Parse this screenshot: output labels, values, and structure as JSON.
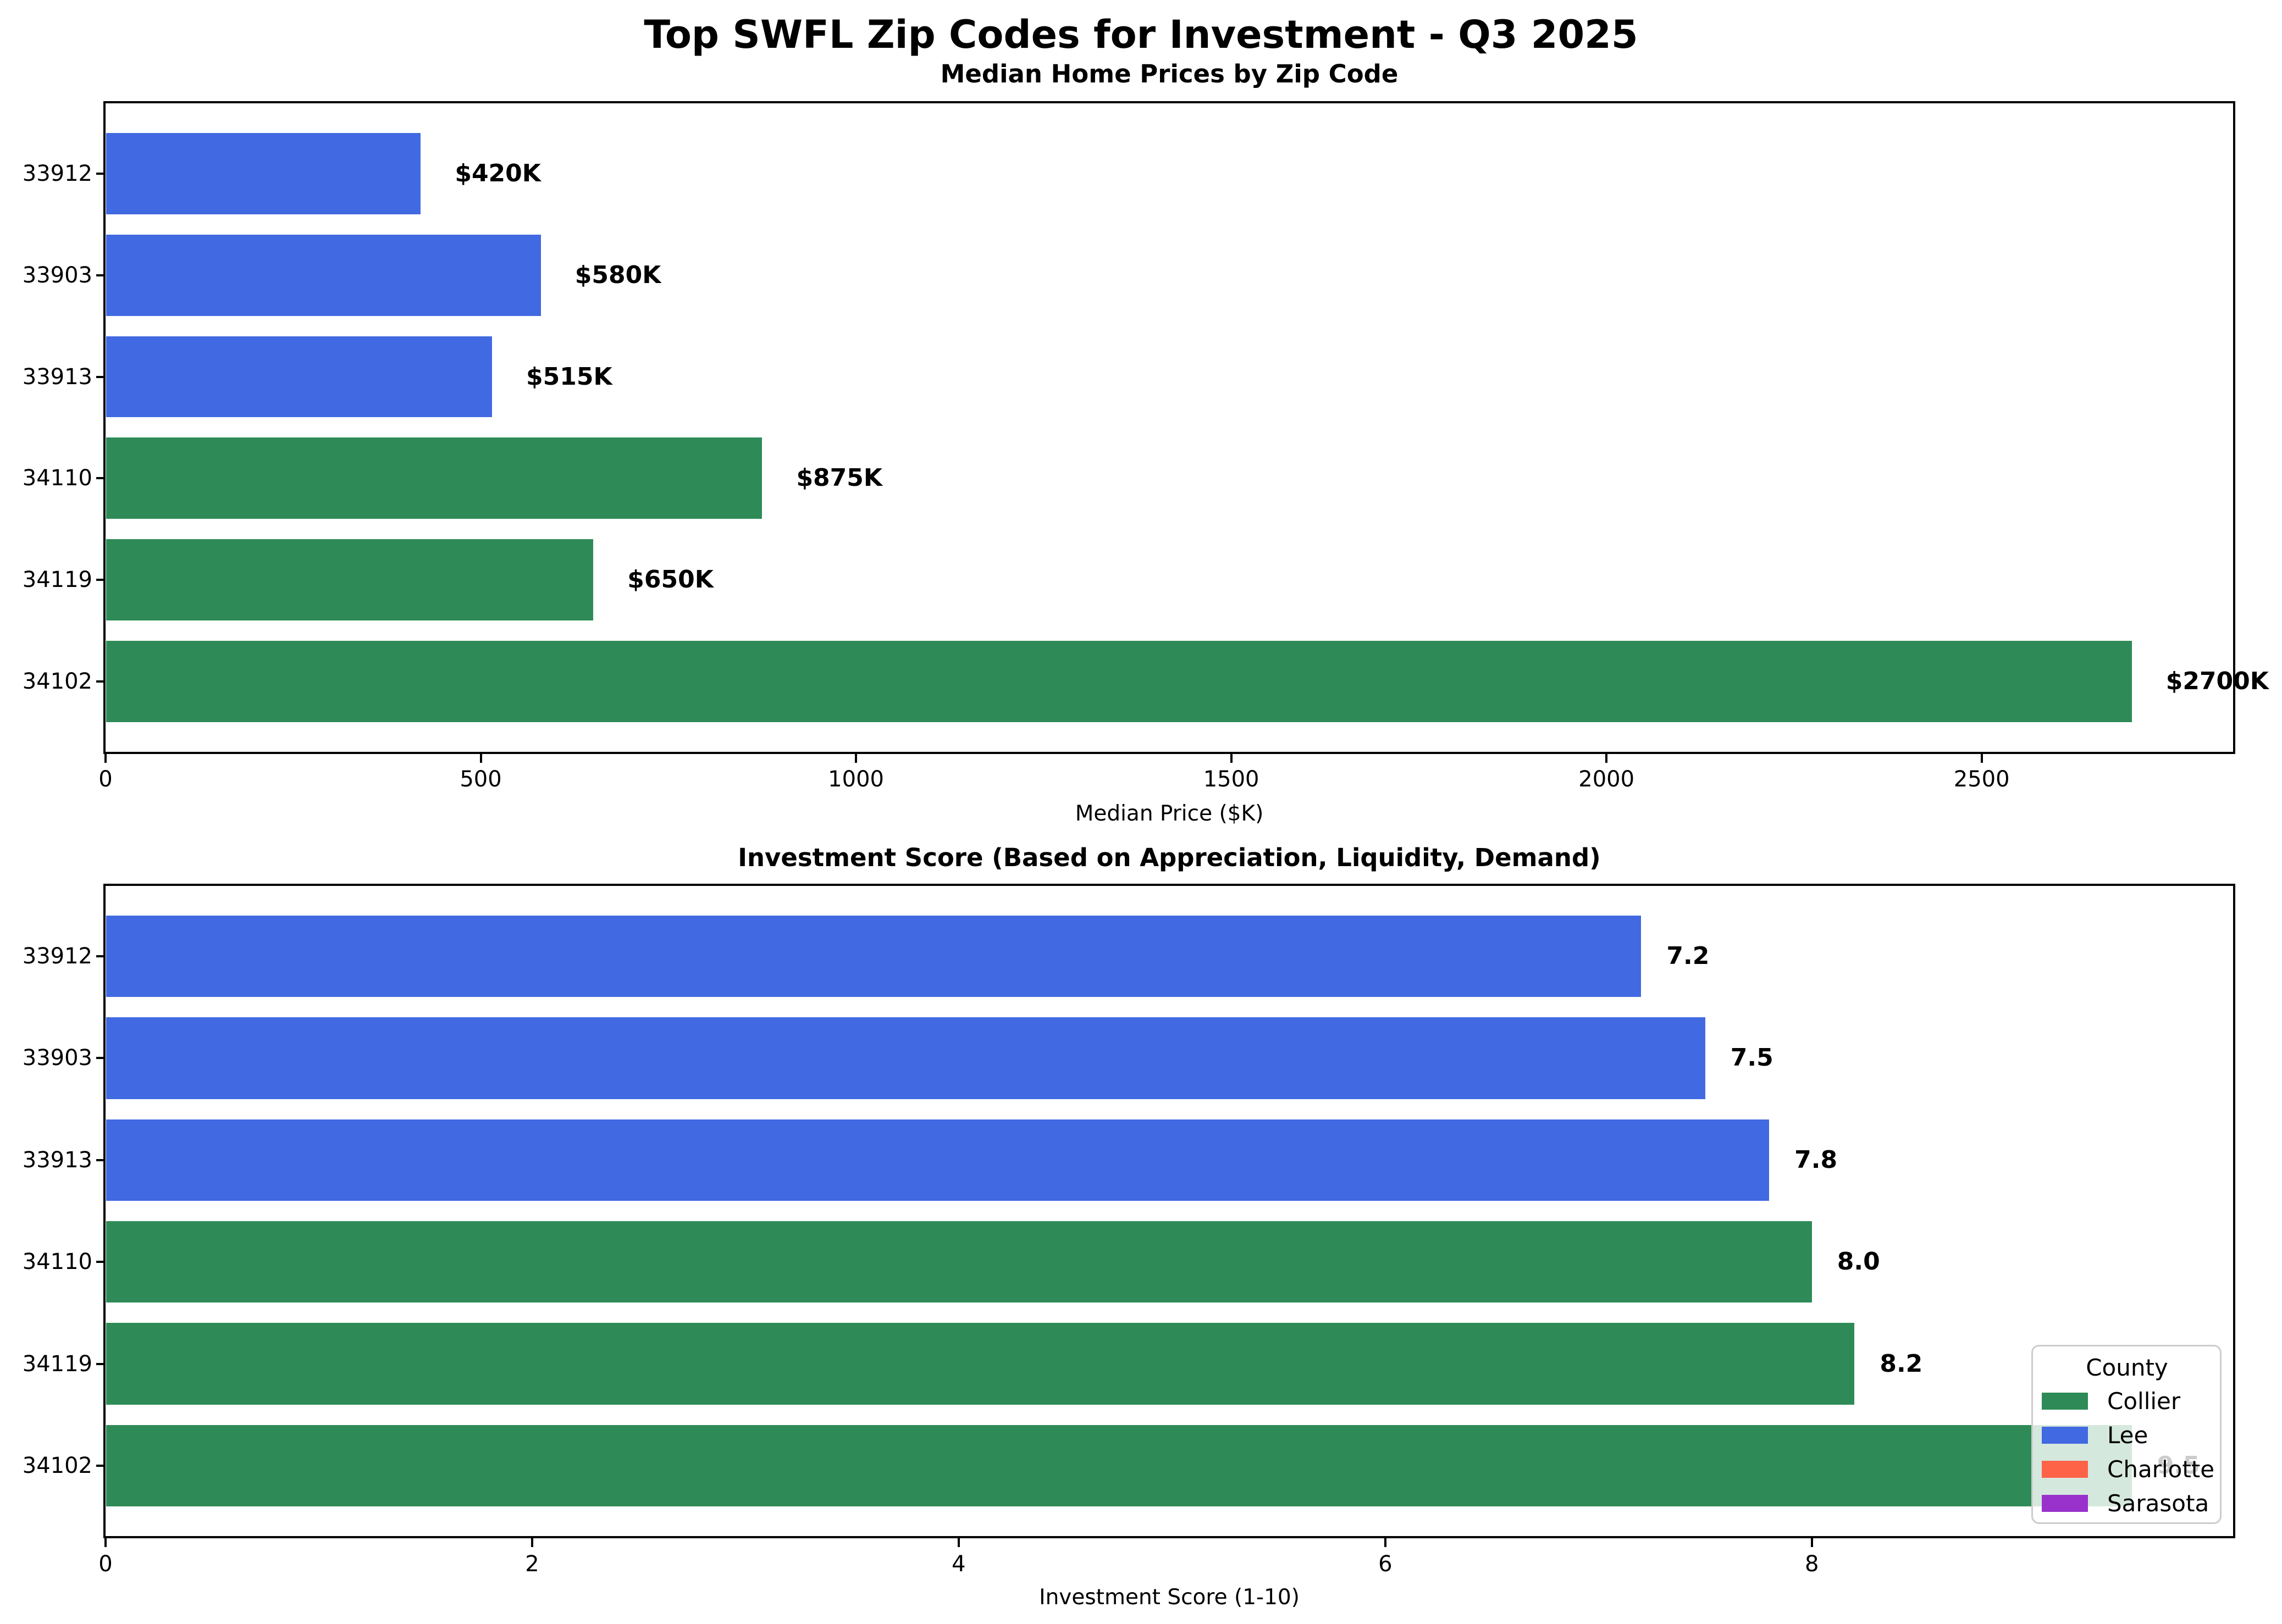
{
  "figure": {
    "title": "Top SWFL Zip Codes for Investment - Q3 2025",
    "background": "#ffffff"
  },
  "legend": {
    "title": "County",
    "entries": [
      {
        "label": "Collier",
        "color": "#2e8b57"
      },
      {
        "label": "Lee",
        "color": "#4169e1"
      },
      {
        "label": "Charlotte",
        "color": "#ff6347"
      },
      {
        "label": "Sarasota",
        "color": "#9932cc"
      }
    ],
    "position": "lower right"
  },
  "chart_data": [
    {
      "type": "bar",
      "orientation": "horizontal",
      "title": "Median Home Prices by Zip Code",
      "xlabel": "Median Price ($K)",
      "categories": [
        "33912",
        "33903",
        "33913",
        "34110",
        "34119",
        "34102"
      ],
      "values": [
        420,
        580,
        515,
        875,
        650,
        2700
      ],
      "counties": [
        "Lee",
        "Lee",
        "Lee",
        "Collier",
        "Collier",
        "Collier"
      ],
      "bar_labels": [
        "$420K",
        "$580K",
        "$515K",
        "$875K",
        "$650K",
        "$2700K"
      ],
      "xlim": [
        0,
        2835
      ],
      "xticks": [
        0,
        500,
        1000,
        1500,
        2000,
        2500
      ],
      "grid": false,
      "legend": false
    },
    {
      "type": "bar",
      "orientation": "horizontal",
      "title": "Investment Score (Based on Appreciation, Liquidity, Demand)",
      "xlabel": "Investment Score (1-10)",
      "categories": [
        "33912",
        "33903",
        "33913",
        "34110",
        "34119",
        "34102"
      ],
      "values": [
        7.2,
        7.5,
        7.8,
        8.0,
        8.2,
        9.5
      ],
      "counties": [
        "Lee",
        "Lee",
        "Lee",
        "Collier",
        "Collier",
        "Collier"
      ],
      "bar_labels": [
        "7.2",
        "7.5",
        "7.8",
        "8.0",
        "8.2",
        "9.5"
      ],
      "xlim": [
        0,
        9.975
      ],
      "xticks": [
        0,
        2,
        4,
        6,
        8
      ],
      "grid": false,
      "legend": true
    }
  ]
}
